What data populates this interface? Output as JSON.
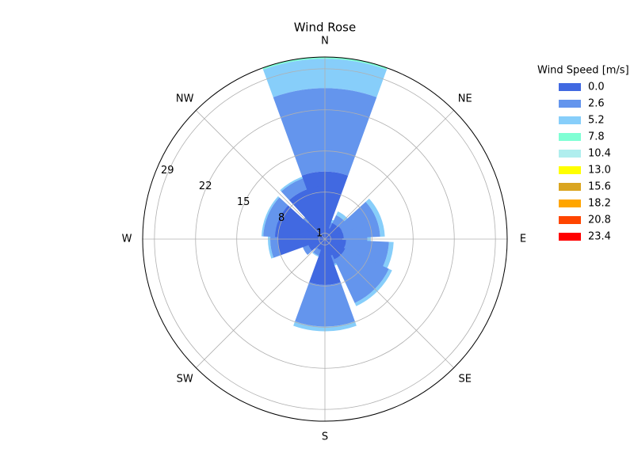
{
  "chart_data": {
    "type": "windrose",
    "title": "Wind Rose",
    "legend_title": "Wind Speed [m/s]",
    "categories": [
      "N",
      null,
      "NE",
      null,
      "E",
      null,
      "SE",
      null,
      "S",
      null,
      "SW",
      null,
      "W",
      null,
      "NW",
      null
    ],
    "series": [
      {
        "name": "0.0",
        "color": "#4169e1",
        "values": [
          11.5,
          2,
          3,
          3.2,
          3,
          3.6,
          3.8,
          3,
          7.8,
          2,
          1.5,
          3,
          8,
          8.5,
          4,
          9
        ]
      },
      {
        "name": "2.6",
        "color": "#6495ed",
        "values": [
          14.2,
          1,
          1.5,
          6.2,
          4.2,
          7.3,
          8.2,
          1.5,
          7.1,
          1,
          0.8,
          1,
          1.3,
          2,
          1,
          2
        ]
      },
      {
        "name": "5.2",
        "color": "#87cefa",
        "values": [
          5,
          0.5,
          0.7,
          0.8,
          0.6,
          0.8,
          0.6,
          0.3,
          0.8,
          0.2,
          0,
          0,
          0.4,
          0.3,
          0,
          0.3
        ]
      },
      {
        "name": "7.8",
        "color": "#7fffd4",
        "values": [
          0.3,
          0,
          0,
          0,
          0,
          0,
          0,
          0,
          0,
          0,
          0,
          0,
          0,
          0,
          0,
          0
        ]
      },
      {
        "name": "10.4",
        "color": "#afeeee",
        "values": [
          0,
          0,
          0,
          0,
          0,
          0,
          0,
          0,
          0,
          0,
          0,
          0,
          0,
          0,
          0,
          0
        ]
      },
      {
        "name": "13.0",
        "color": "#ffff00",
        "values": [
          0,
          0,
          0,
          0,
          0,
          0,
          0,
          0,
          0,
          0,
          0,
          0,
          0,
          0,
          0,
          0
        ]
      },
      {
        "name": "15.6",
        "color": "#daa520",
        "values": [
          0,
          0,
          0,
          0,
          0,
          0,
          0,
          0,
          0,
          0,
          0,
          0,
          0,
          0,
          0,
          0
        ]
      },
      {
        "name": "18.2",
        "color": "#ffa500",
        "values": [
          0,
          0,
          0,
          0,
          0,
          0,
          0,
          0,
          0,
          0,
          0,
          0,
          0,
          0,
          0,
          0
        ]
      },
      {
        "name": "20.8",
        "color": "#ff4500",
        "values": [
          0,
          0,
          0,
          0,
          0,
          0,
          0,
          0,
          0,
          0,
          0,
          0,
          0,
          0,
          0,
          0
        ]
      },
      {
        "name": "23.4",
        "color": "#ff0000",
        "values": [
          0,
          0,
          0,
          0,
          0,
          0,
          0,
          0,
          0,
          0,
          0,
          0,
          0,
          0,
          0,
          0
        ]
      }
    ],
    "ylim": [
      0,
      31
    ],
    "yticks": [
      1,
      8,
      15,
      22,
      29
    ],
    "grid": true
  }
}
